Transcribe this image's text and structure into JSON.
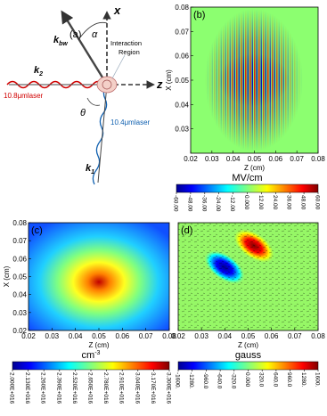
{
  "diagram": {
    "panel_label": "(a)",
    "x_axis": "x",
    "z_axis": "z",
    "alpha": "α",
    "theta": "θ",
    "region_line1": "Interaction",
    "region_line2": "Region",
    "kbw": {
      "main": "k",
      "sub": "bw"
    },
    "k2": {
      "main": "k",
      "sub": "2"
    },
    "k1": {
      "main": "k",
      "sub": "1"
    },
    "laser_red": "10.8μmlaser",
    "laser_blue": "10.4μmlaser"
  },
  "chart_data": [
    {
      "type": "heatmap",
      "panel_label": "(b)",
      "xlabel": "Z (cm)",
      "ylabel": "X (cm)",
      "xlim": [
        0.02,
        0.08
      ],
      "ylim": [
        0.02,
        0.08
      ],
      "xticks": [
        0.02,
        0.03,
        0.04,
        0.05,
        0.06,
        0.07,
        0.08
      ],
      "yticks": [
        0.03,
        0.04,
        0.05,
        0.06,
        0.07,
        0.08
      ],
      "colorbar": {
        "title": "MV/cm",
        "lim": [
          -60,
          60
        ],
        "ticks": [
          {
            "value": -60,
            "label": "-60.00"
          },
          {
            "value": -48,
            "label": "-48.00"
          },
          {
            "value": -36,
            "label": "-36.00"
          },
          {
            "value": -24,
            "label": "-24.00"
          },
          {
            "value": -12,
            "label": "-12.00"
          },
          {
            "value": 0,
            "label": "0.000"
          },
          {
            "value": 12,
            "label": "12.00"
          },
          {
            "value": 24,
            "label": "24.00"
          },
          {
            "value": 36,
            "label": "36.00"
          },
          {
            "value": 48,
            "label": "48.00"
          },
          {
            "value": 60,
            "label": "60.00"
          }
        ]
      }
    },
    {
      "type": "heatmap",
      "panel_label": "(c)",
      "xlabel": "Z (cm)",
      "ylabel": "X (cm)",
      "xlim": [
        0.02,
        0.08
      ],
      "ylim": [
        0.02,
        0.08
      ],
      "xticks": [
        0.02,
        0.03,
        0.04,
        0.05,
        0.06,
        0.07,
        0.08
      ],
      "yticks": [
        0.02,
        0.03,
        0.04,
        0.05,
        0.06,
        0.07,
        0.08
      ],
      "colorbar": {
        "title": "cm",
        "title_sup": "-3",
        "lim": [
          2e+16,
          3.3e+16
        ],
        "ticks": [
          {
            "value": 2e+16,
            "label": "2.000E+016"
          },
          {
            "value": 2.13e+16,
            "label": "2.130E+016"
          },
          {
            "value": 2.26e+16,
            "label": "2.260E+016"
          },
          {
            "value": 2.39e+16,
            "label": "2.390E+016"
          },
          {
            "value": 2.52e+16,
            "label": "2.520E+016"
          },
          {
            "value": 2.65e+16,
            "label": "2.650E+016"
          },
          {
            "value": 2.78e+16,
            "label": "2.780E+016"
          },
          {
            "value": 2.91e+16,
            "label": "2.910E+016"
          },
          {
            "value": 3.04e+16,
            "label": "3.040E+016"
          },
          {
            "value": 3.17e+16,
            "label": "3.170E+016"
          },
          {
            "value": 3.3e+16,
            "label": "3.300E+016"
          }
        ]
      }
    },
    {
      "type": "heatmap",
      "panel_label": "(d)",
      "xlabel": "Z (cm)",
      "xlim": [
        0.02,
        0.08
      ],
      "ylim": [
        0.02,
        0.08
      ],
      "xticks": [
        0.02,
        0.03,
        0.04,
        0.05,
        0.06,
        0.07,
        0.08
      ],
      "colorbar": {
        "title": "gauss",
        "lim": [
          -1600,
          1600
        ],
        "ticks": [
          {
            "value": -1600,
            "label": "-1600."
          },
          {
            "value": -1280,
            "label": "-1280."
          },
          {
            "value": -960,
            "label": "-960.0"
          },
          {
            "value": -640,
            "label": "-640.0"
          },
          {
            "value": -320,
            "label": "-320.0"
          },
          {
            "value": 0,
            "label": "0.000"
          },
          {
            "value": 320,
            "label": "320.0"
          },
          {
            "value": 640,
            "label": "640.0"
          },
          {
            "value": 960,
            "label": "960.0"
          },
          {
            "value": 1280,
            "label": "1280."
          },
          {
            "value": 1600,
            "label": "1600."
          }
        ]
      }
    }
  ]
}
